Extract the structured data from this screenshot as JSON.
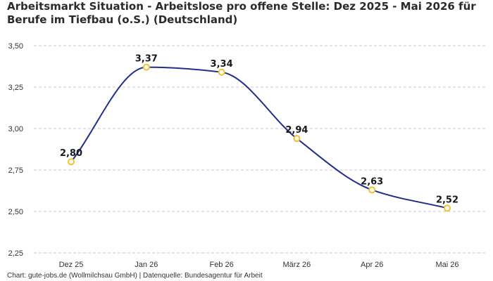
{
  "title_line1": "Arbeitsmarkt Situation - Arbeitslose pro offene Stelle: Dez 2025 - Mai 2026 für",
  "title_line2": "Berufe im Tiefbau (o.S.) (Deutschland)",
  "footer": "Chart: gute-jobs.de (Wollmilchsau GmbH) | Datenquelle: Bundesagentur für Arbeit",
  "colors": {
    "line": "#1f2f8a",
    "marker_stroke": "#f2c12e",
    "marker_fill": "#ffffff",
    "grid": "#c8c8c8"
  },
  "chart_data": {
    "type": "line",
    "title": "Arbeitsmarkt Situation - Arbeitslose pro offene Stelle: Dez 2025 - Mai 2026 für Berufe im Tiefbau (o.S.) (Deutschland)",
    "categories": [
      "Dez 25",
      "Jan 26",
      "Feb 26",
      "März 26",
      "Apr 26",
      "Mai 26"
    ],
    "values": [
      2.8,
      3.37,
      3.34,
      2.94,
      2.63,
      2.52
    ],
    "value_labels": [
      "2,80",
      "3,37",
      "3,34",
      "2,94",
      "2,63",
      "2,52"
    ],
    "y_ticks": [
      2.25,
      2.5,
      2.75,
      3.0,
      3.25,
      3.5
    ],
    "y_tick_labels": [
      "2,25",
      "2,50",
      "2,75",
      "3,00",
      "3,25",
      "3,50"
    ],
    "ylim": [
      2.25,
      3.5
    ],
    "xlabel": "",
    "ylabel": "",
    "grid": true,
    "grid_style": "dashed horizontal",
    "legend": false,
    "curve": "smooth"
  }
}
